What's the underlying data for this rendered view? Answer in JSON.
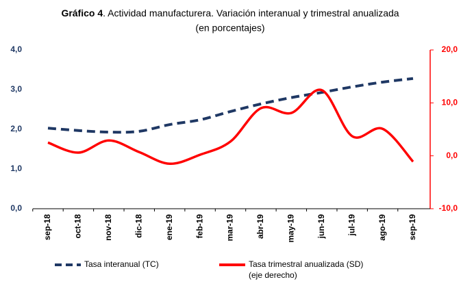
{
  "chart_data": {
    "type": "line",
    "title_bold": "Gráfico 4",
    "title": ". Actividad manufacturera. Variación interanual y trimestral anualizada",
    "subtitle": "(en porcentajes)",
    "categories": [
      "sep-18",
      "oct-18",
      "nov-18",
      "dic-18",
      "ene-19",
      "feb-19",
      "mar-19",
      "abr-19",
      "may-19",
      "jun-19",
      "jul-19",
      "ago-19",
      "sep-19"
    ],
    "series": [
      {
        "name": "Tasa interanual (TC)",
        "color": "#1f3864",
        "dash": true,
        "values": [
          2.03,
          1.97,
          1.93,
          1.95,
          2.12,
          2.24,
          2.45,
          2.64,
          2.8,
          2.93,
          3.07,
          3.19,
          3.28
        ]
      },
      {
        "name": "Tasa trimestral anualizada (SD)",
        "legend_note": "(eje derecho)",
        "color": "#ff0000",
        "axis": "y2",
        "values": [
          2.5,
          0.6,
          2.9,
          0.7,
          -1.5,
          0.2,
          2.7,
          9.0,
          8.1,
          12.4,
          3.7,
          5.1,
          -1.1
        ]
      }
    ],
    "ylim": [
      0,
      4
    ],
    "yticks": [
      {
        "value": 0,
        "label": "0,0"
      },
      {
        "value": 1,
        "label": "1,0"
      },
      {
        "value": 2,
        "label": "2,0"
      },
      {
        "value": 3,
        "label": "3,0"
      },
      {
        "value": 4,
        "label": "4,0"
      }
    ],
    "y2lim": [
      -10,
      20
    ],
    "y2ticks": [
      {
        "value": -10,
        "label": "-10,0"
      },
      {
        "value": 0,
        "label": "0,0"
      },
      {
        "value": 10,
        "label": "10,0"
      },
      {
        "value": 20,
        "label": "20,0"
      }
    ],
    "y2color": "#ff0000"
  }
}
